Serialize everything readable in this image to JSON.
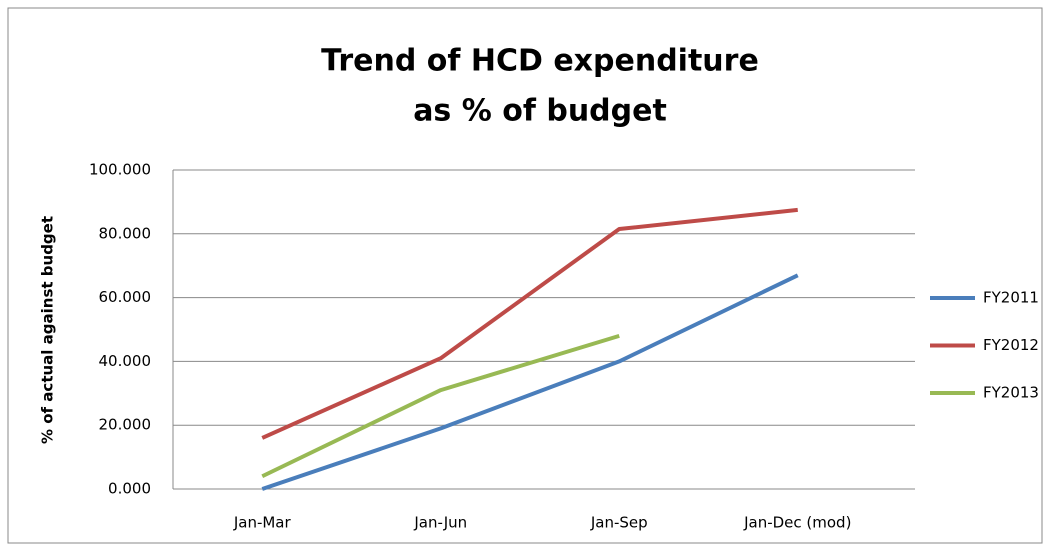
{
  "chart_data": {
    "type": "line",
    "title": [
      "Trend of HCD expenditure",
      "as % of budget"
    ],
    "y_label": "% of actual against budget",
    "categories": [
      "Jan-Mar",
      "Jan-Jun",
      "Jan-Sep",
      "Jan-Dec (mod)"
    ],
    "series": [
      {
        "name": "FY2011",
        "color": "#4a7ebb",
        "values": [
          0,
          19,
          40,
          67
        ]
      },
      {
        "name": "FY2012",
        "color": "#be4b48",
        "values": [
          16,
          41,
          81.5,
          87.5
        ]
      },
      {
        "name": "FY2013",
        "color": "#98b954",
        "values": [
          4,
          31,
          48,
          null
        ]
      }
    ],
    "ylim": [
      0,
      100
    ],
    "yticks": [
      {
        "value": 0,
        "label": "0.000"
      },
      {
        "value": 20,
        "label": "20.000"
      },
      {
        "value": 40,
        "label": "40.000"
      },
      {
        "value": 60,
        "label": "60.000"
      },
      {
        "value": 80,
        "label": "80.000"
      },
      {
        "value": 100,
        "label": "100.000"
      }
    ],
    "grid": true,
    "legend": "right"
  }
}
